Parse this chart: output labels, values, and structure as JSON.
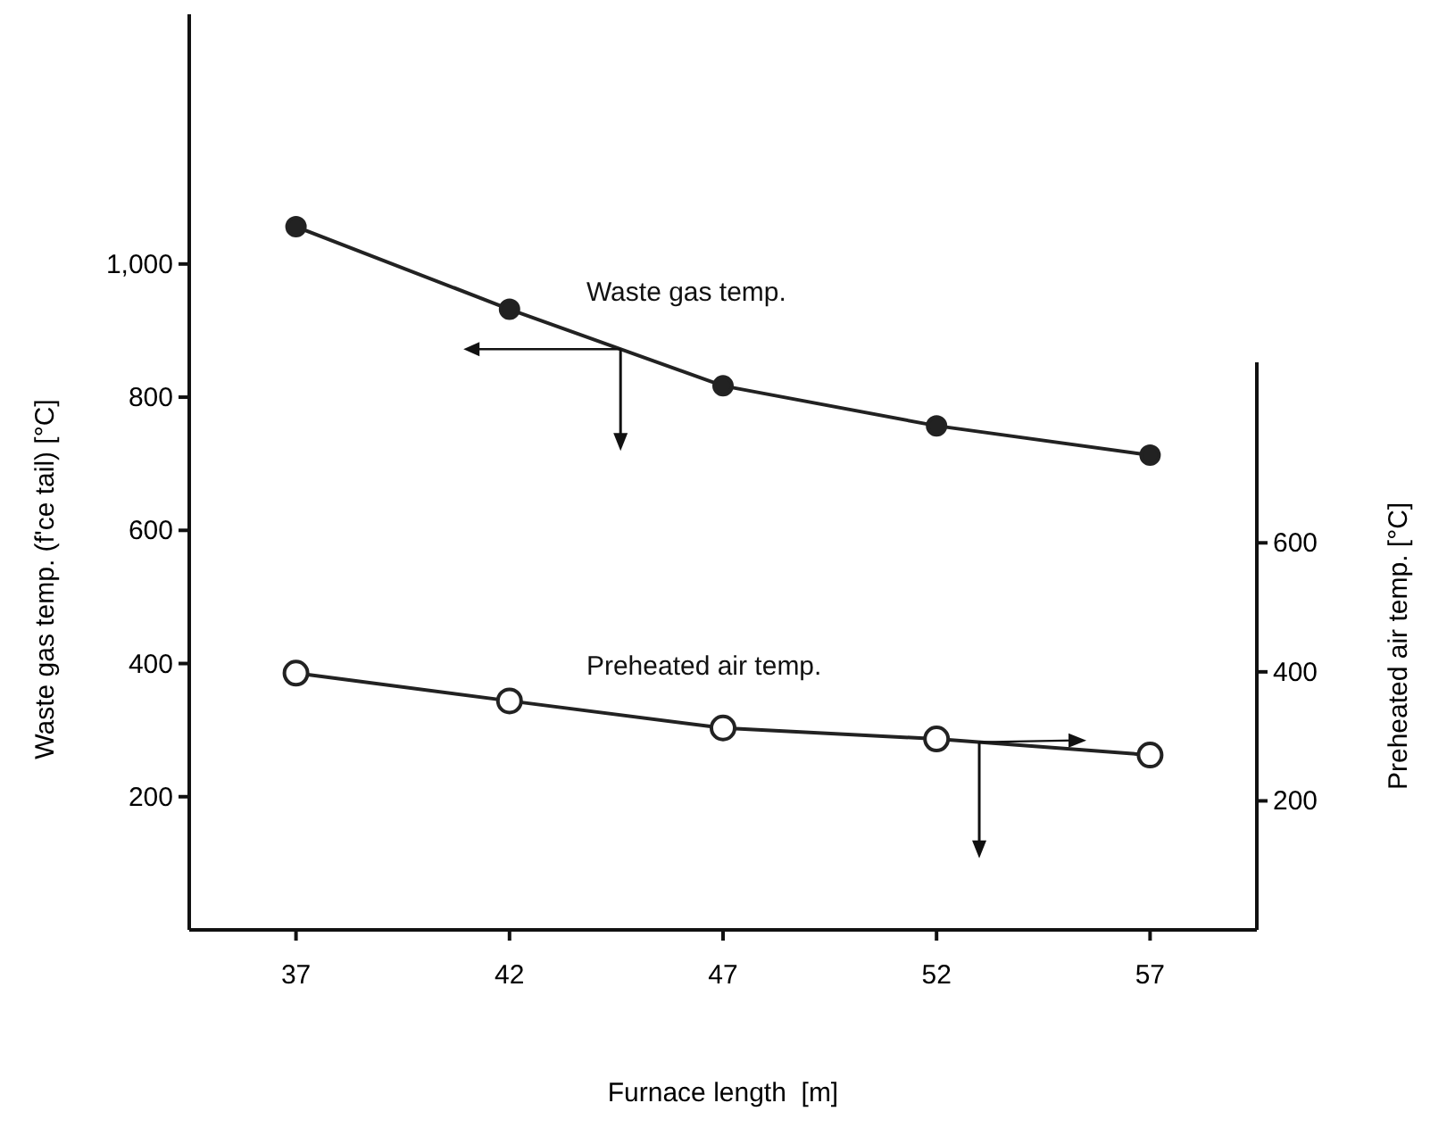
{
  "chart_data": {
    "type": "line",
    "xlabel": "Furnace length  [m]",
    "ylabel": "Waste gas temp. (f'ce tail) [°C]",
    "y2label": "Preheated air temp. [°C]",
    "x": [
      37,
      42,
      47,
      52,
      57
    ],
    "xlim": [
      34.5,
      59.5
    ],
    "xticks": [
      37,
      42,
      47,
      52,
      57
    ],
    "ylim": [
      0,
      1375
    ],
    "yticks": [
      200,
      400,
      600,
      800,
      {
        "value": 1000,
        "label": "1,000"
      }
    ],
    "y2lim": [
      0,
      880
    ],
    "y2ticks": [
      200,
      400,
      600
    ],
    "marker": "circle",
    "series": [
      {
        "name": "Waste gas temp.",
        "color": "#222222",
        "values": [
          1056,
          932,
          817,
          757,
          713
        ]
      },
      {
        "name": "Preheated air temp.",
        "color": "#222222",
        "axis": "y2",
        "values": [
          398,
          355,
          313,
          296,
          271
        ]
      }
    ]
  }
}
